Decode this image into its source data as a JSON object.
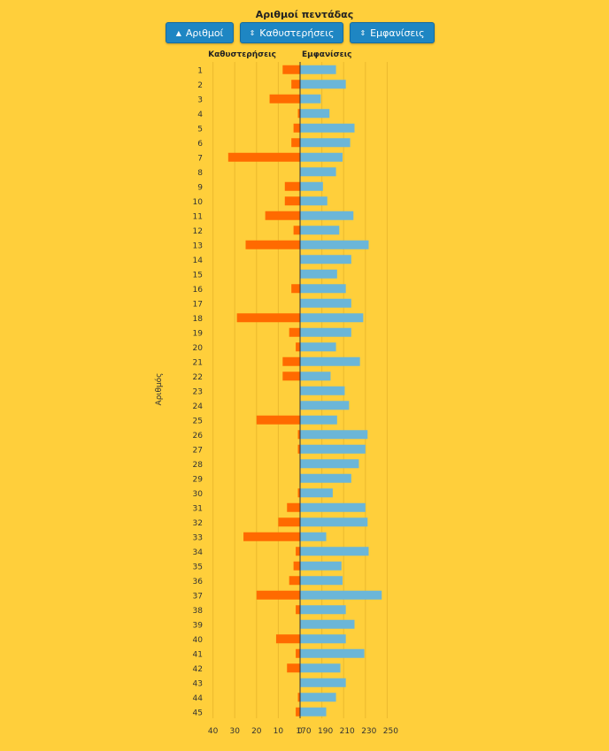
{
  "title": "Αριθμοί πεντάδας",
  "buttons": [
    {
      "label": "Αριθμοί",
      "icon": "▲"
    },
    {
      "label": "Καθυστερήσεις",
      "icon": "⇕"
    },
    {
      "label": "Εμφανίσεις",
      "icon": "⇕"
    }
  ],
  "colors": {
    "background": "#FFCF3B",
    "delays": "#FF6A00",
    "appearances": "#6BB6D8",
    "button": "#1E86C3"
  },
  "chart_data": {
    "type": "bar",
    "orientation": "horizontal-butterfly",
    "ylabel": "Αριθμός",
    "left_axis": {
      "label": "Καθυστερήσεις",
      "ticks": [
        "40",
        "30",
        "20",
        "10",
        "0"
      ],
      "range": [
        40,
        0
      ]
    },
    "right_axis": {
      "label": "Εμφανίσεις",
      "ticks": [
        "170",
        "190",
        "210",
        "230",
        "250"
      ],
      "range": [
        170,
        250
      ]
    },
    "categories": [
      "1",
      "2",
      "3",
      "4",
      "5",
      "6",
      "7",
      "8",
      "9",
      "10",
      "11",
      "12",
      "13",
      "14",
      "15",
      "16",
      "17",
      "18",
      "19",
      "20",
      "21",
      "22",
      "23",
      "24",
      "25",
      "26",
      "27",
      "28",
      "29",
      "30",
      "31",
      "32",
      "33",
      "34",
      "35",
      "36",
      "37",
      "38",
      "39",
      "40",
      "41",
      "42",
      "43",
      "44",
      "45"
    ],
    "series": [
      {
        "name": "Καθυστερήσεις",
        "values": [
          8,
          4,
          14,
          1,
          3,
          4,
          33,
          0,
          7,
          7,
          16,
          3,
          25,
          0,
          0,
          4,
          0,
          29,
          5,
          2,
          8,
          8,
          0,
          0,
          20,
          1,
          1,
          0,
          0,
          1,
          6,
          10,
          26,
          2,
          3,
          5,
          20,
          2,
          0,
          11,
          2,
          6,
          0,
          1,
          2
        ]
      },
      {
        "name": "Εμφανίσεις",
        "values": [
          203,
          212,
          189,
          197,
          220,
          216,
          209,
          203,
          191,
          195,
          219,
          206,
          233,
          217,
          204,
          212,
          217,
          228,
          217,
          203,
          225,
          198,
          211,
          215,
          204,
          232,
          230,
          224,
          217,
          200,
          230,
          232,
          194,
          233,
          208,
          209,
          245,
          212,
          220,
          212,
          229,
          207,
          212,
          203,
          194
        ]
      }
    ]
  }
}
